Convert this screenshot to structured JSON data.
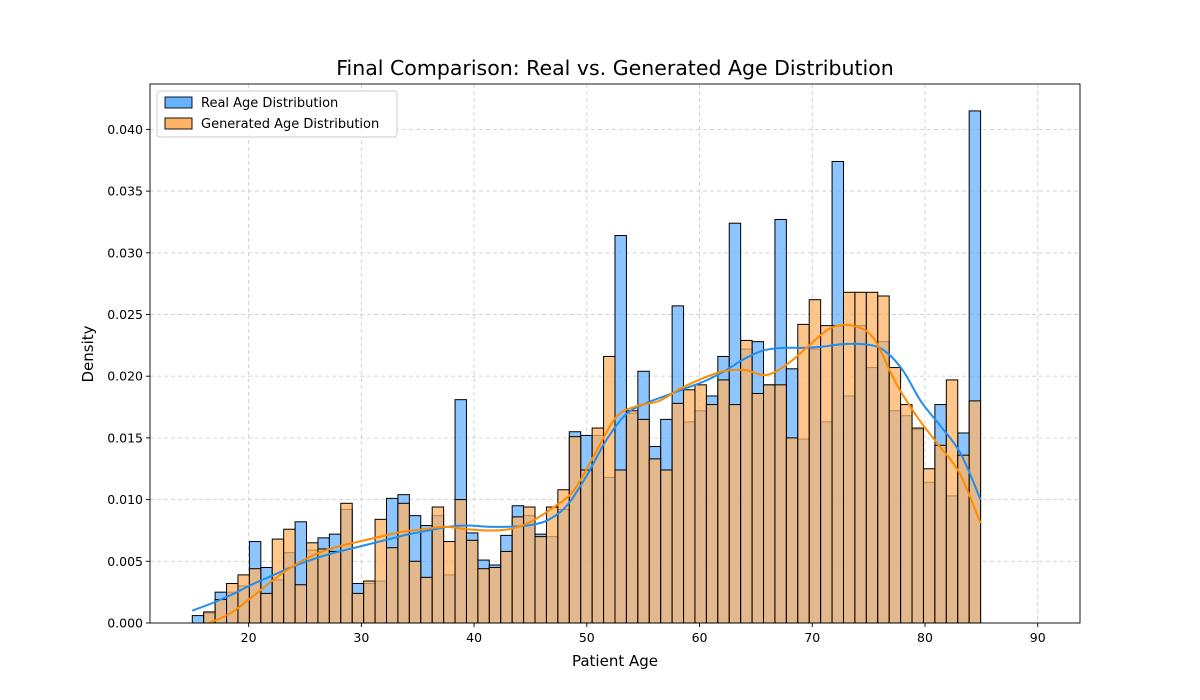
{
  "chart_data": {
    "type": "bar",
    "title": "Final Comparison: Real vs. Generated Age Distribution",
    "xlabel": "Patient Age",
    "ylabel": "Density",
    "xlim": [
      11.25,
      93.75
    ],
    "ylim": [
      0,
      0.04368
    ],
    "xticks": [
      20,
      30,
      40,
      50,
      60,
      70,
      80,
      90
    ],
    "yticks": [
      0.0,
      0.005,
      0.01,
      0.015,
      0.02,
      0.025,
      0.03,
      0.035,
      0.04
    ],
    "ytick_labels": [
      "0.000",
      "0.005",
      "0.010",
      "0.015",
      "0.020",
      "0.025",
      "0.030",
      "0.035",
      "0.040"
    ],
    "grid": true,
    "legend_position": "upper-left",
    "bin_start": 15,
    "bin_width": 1.0135,
    "series": [
      {
        "name": "Real Age Distribution",
        "color": "#66b2ff",
        "values": [
          0.0006,
          0.0008,
          0.0025,
          0.0025,
          0.003,
          0.0066,
          0.0045,
          0.0035,
          0.0057,
          0.0082,
          0.0059,
          0.0069,
          0.0072,
          0.0092,
          0.0032,
          0.0032,
          0.0034,
          0.0101,
          0.0104,
          0.0087,
          0.0079,
          0.0087,
          0.0039,
          0.0181,
          0.0073,
          0.0051,
          0.0047,
          0.0071,
          0.0095,
          0.0087,
          0.0072,
          0.007,
          0.0092,
          0.0155,
          0.0152,
          0.0152,
          0.0118,
          0.0314,
          0.017,
          0.0204,
          0.0143,
          0.0165,
          0.0257,
          0.0163,
          0.0172,
          0.0184,
          0.0216,
          0.0324,
          0.0222,
          0.0228,
          0.0193,
          0.0327,
          0.0206,
          0.0149,
          0.0222,
          0.0163,
          0.0374,
          0.0184,
          0.0241,
          0.0207,
          0.0228,
          0.0172,
          0.0168,
          0.0157,
          0.0114,
          0.0177,
          0.0103,
          0.0154,
          0.0415
        ],
        "kde": [
          0.001,
          0.0016,
          0.0023,
          0.0031,
          0.0038,
          0.0045,
          0.0051,
          0.0056,
          0.006,
          0.0064,
          0.0068,
          0.0072,
          0.0075,
          0.0078,
          0.0079,
          0.0078,
          0.0078,
          0.0079,
          0.0083,
          0.0095,
          0.0119,
          0.0148,
          0.0169,
          0.0178,
          0.0184,
          0.019,
          0.0196,
          0.0204,
          0.0214,
          0.0221,
          0.0223,
          0.0223,
          0.0224,
          0.0226,
          0.0226,
          0.0222,
          0.0206,
          0.0179,
          0.0159,
          0.0137,
          0.01
        ]
      },
      {
        "name": "Generated Age Distribution",
        "color": "#ffb366",
        "values": [
          0,
          0.0009,
          0.0019,
          0.0032,
          0.0039,
          0.0044,
          0.0024,
          0.0068,
          0.0076,
          0.0031,
          0.0065,
          0.006,
          0.0058,
          0.0097,
          0.0024,
          0.0034,
          0.0084,
          0.0061,
          0.0097,
          0.005,
          0.0037,
          0.0094,
          0.0066,
          0.01,
          0.0067,
          0.0044,
          0.0045,
          0.0058,
          0.0086,
          0.0094,
          0.007,
          0.0094,
          0.0108,
          0.0151,
          0.0124,
          0.0158,
          0.0216,
          0.0124,
          0.0172,
          0.0165,
          0.0133,
          0.0124,
          0.0178,
          0.0189,
          0.0193,
          0.0177,
          0.0197,
          0.0177,
          0.0229,
          0.0186,
          0.0193,
          0.0193,
          0.015,
          0.0242,
          0.0262,
          0.0241,
          0.0241,
          0.0268,
          0.0268,
          0.0268,
          0.0265,
          0.0207,
          0.0177,
          0.0158,
          0.0125,
          0.0144,
          0.0197,
          0.0136,
          0.018
        ],
        "kde": [
          0,
          0.0008,
          0.0021,
          0.0035,
          0.0047,
          0.0056,
          0.0062,
          0.0066,
          0.007,
          0.0074,
          0.0076,
          0.0078,
          0.0076,
          0.0075,
          0.0076,
          0.0082,
          0.0093,
          0.0107,
          0.0137,
          0.0167,
          0.0176,
          0.018,
          0.019,
          0.0198,
          0.0204,
          0.0205,
          0.0201,
          0.021,
          0.0225,
          0.0239,
          0.0241,
          0.0231,
          0.0196,
          0.0168,
          0.0145,
          0.0122,
          0.0081
        ]
      }
    ]
  }
}
